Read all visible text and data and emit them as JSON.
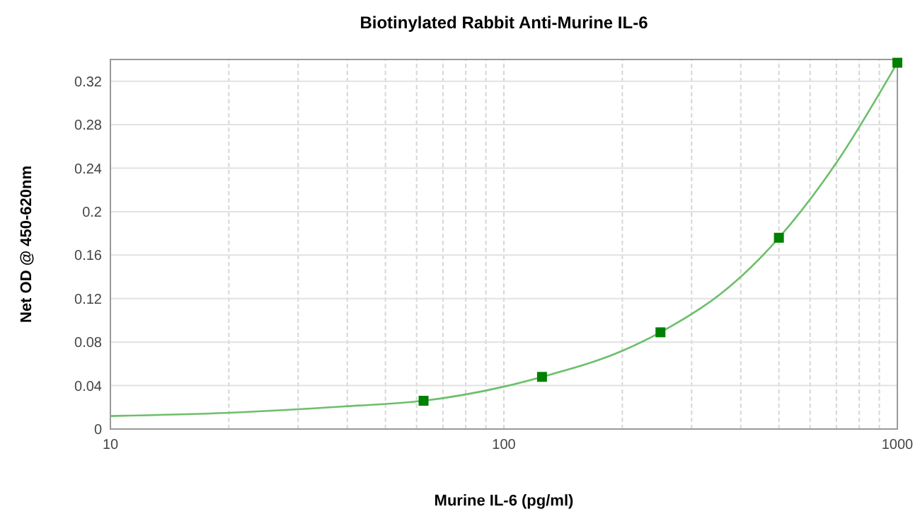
{
  "chart_data": {
    "type": "scatter",
    "title": "Biotinylated Rabbit Anti-Murine IL-6",
    "xlabel": "Murine IL-6 (pg/ml)",
    "ylabel": "Net OD @ 450-620nm",
    "log": "x",
    "grid": true,
    "marker": "square",
    "xlim": [
      10,
      1000
    ],
    "xticks": [
      10,
      {
        "value": 20,
        "label": null
      },
      {
        "value": 30,
        "label": null
      },
      {
        "value": 40,
        "label": null
      },
      {
        "value": 50,
        "label": null
      },
      {
        "value": 60,
        "label": null
      },
      {
        "value": 70,
        "label": null
      },
      {
        "value": 80,
        "label": null
      },
      {
        "value": 90,
        "label": null
      },
      100,
      {
        "value": 200,
        "label": null
      },
      {
        "value": 300,
        "label": null
      },
      {
        "value": 400,
        "label": null
      },
      {
        "value": 500,
        "label": null
      },
      {
        "value": 600,
        "label": null
      },
      {
        "value": 700,
        "label": null
      },
      {
        "value": 800,
        "label": null
      },
      {
        "value": 900,
        "label": null
      },
      1000
    ],
    "ylim": [
      0,
      0.34
    ],
    "yticks": [
      0,
      0.04,
      0.08,
      0.12,
      0.16,
      0.2,
      0.24,
      0.28,
      0.32
    ],
    "series": [
      {
        "type": "line",
        "color": "#6cbf6c",
        "marker": "none",
        "x": [
          10,
          20,
          40,
          62.5,
          100,
          125,
          200,
          250,
          400,
          500,
          700,
          1000
        ],
        "values": [
          0.012,
          0.015,
          0.021,
          0.026,
          0.039,
          0.048,
          0.072,
          0.089,
          0.14,
          0.176,
          0.245,
          0.337
        ]
      },
      {
        "color": "#008000",
        "x": [
          62.5,
          125,
          250,
          500,
          1000
        ],
        "values": [
          0.026,
          0.048,
          0.089,
          0.176,
          0.337
        ]
      }
    ]
  }
}
